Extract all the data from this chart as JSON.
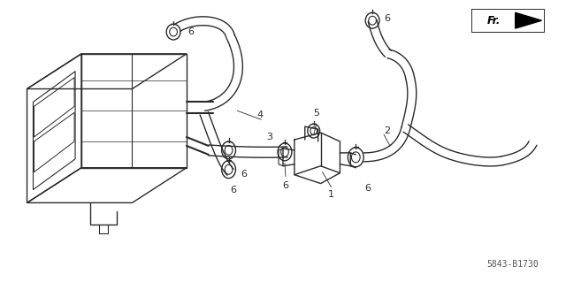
{
  "bg_color": "#ffffff",
  "line_color": "#2a2a2a",
  "part_number": "5843-B1730",
  "fig_width": 6.4,
  "fig_height": 3.19,
  "dpi": 100
}
